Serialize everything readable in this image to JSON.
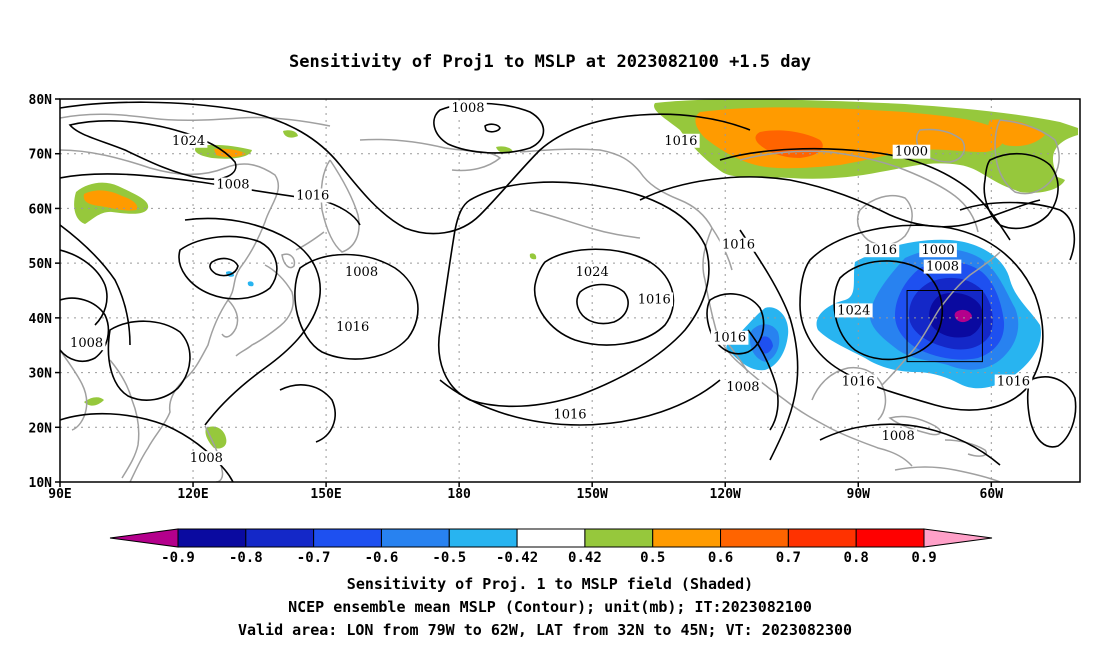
{
  "chart_data": {
    "type": "heatmap",
    "title": "Sensitivity of Proj1 to MSLP at 2023082100 +1.5 day",
    "x_ticks": [
      "90E",
      "120E",
      "150E",
      "180",
      "150W",
      "120W",
      "90W",
      "60W"
    ],
    "x_tick_lons": [
      90,
      120,
      150,
      180,
      210,
      240,
      270,
      300
    ],
    "y_ticks": [
      "10N",
      "20N",
      "30N",
      "40N",
      "50N",
      "60N",
      "70N",
      "80N"
    ],
    "y_tick_lats": [
      10,
      20,
      30,
      40,
      50,
      60,
      70,
      80
    ],
    "xlim_lon": [
      90,
      320
    ],
    "ylim_lat": [
      10,
      80
    ],
    "grid": true,
    "colorbar": {
      "labels": [
        "-0.9",
        "-0.8",
        "-0.7",
        "-0.6",
        "-0.5",
        "-0.42",
        "0.42",
        "0.5",
        "0.6",
        "0.7",
        "0.8",
        "0.9"
      ],
      "colors": [
        "#b4008c",
        "#0a0aa0",
        "#1428c8",
        "#1e50f0",
        "#2882f0",
        "#28b4f0",
        "#ffffff",
        "#96c83c",
        "#ff9b00",
        "#ff6400",
        "#ff3200",
        "#ff0000",
        "#ffa0c8"
      ]
    },
    "contour_unit": "mb",
    "contour_labels": [
      {
        "text": "1008",
        "lon": 182,
        "lat": 78
      },
      {
        "text": "1024",
        "lon": 119,
        "lat": 72
      },
      {
        "text": "1016",
        "lon": 230,
        "lat": 72
      },
      {
        "text": "1000",
        "lon": 282,
        "lat": 70
      },
      {
        "text": "1008",
        "lon": 129,
        "lat": 64
      },
      {
        "text": "1016",
        "lon": 147,
        "lat": 62
      },
      {
        "text": "1016",
        "lon": 243,
        "lat": 53
      },
      {
        "text": "1016",
        "lon": 275,
        "lat": 52
      },
      {
        "text": "1000",
        "lon": 288,
        "lat": 52
      },
      {
        "text": "1008",
        "lon": 289,
        "lat": 49
      },
      {
        "text": "1008",
        "lon": 158,
        "lat": 48
      },
      {
        "text": "1024",
        "lon": 210,
        "lat": 48
      },
      {
        "text": "1016",
        "lon": 224,
        "lat": 43
      },
      {
        "text": "1024",
        "lon": 269,
        "lat": 41
      },
      {
        "text": "1016",
        "lon": 156,
        "lat": 38
      },
      {
        "text": "1016",
        "lon": 241,
        "lat": 36
      },
      {
        "text": "1008",
        "lon": 96,
        "lat": 35
      },
      {
        "text": "1008",
        "lon": 244,
        "lat": 27
      },
      {
        "text": "1016",
        "lon": 270,
        "lat": 28
      },
      {
        "text": "1016",
        "lon": 305,
        "lat": 28
      },
      {
        "text": "1016",
        "lon": 205,
        "lat": 22
      },
      {
        "text": "1008",
        "lon": 279,
        "lat": 18
      },
      {
        "text": "1008",
        "lon": 123,
        "lat": 14
      }
    ],
    "valid_area": {
      "lon": [
        281,
        298
      ],
      "lat": [
        32,
        45
      ]
    },
    "caption": [
      "Sensitivity of Proj. 1 to MSLP field (Shaded)",
      "NCEP ensemble mean MSLP (Contour); unit(mb); IT:2023082100",
      "Valid area: LON from 79W to 62W, LAT from 32N to 45N; VT: 2023082300"
    ]
  }
}
